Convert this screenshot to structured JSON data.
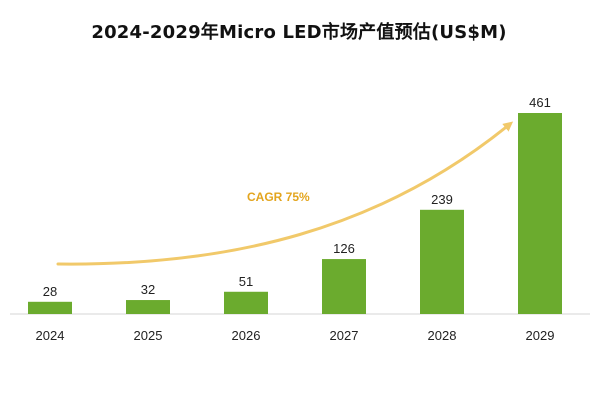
{
  "chart_data": {
    "type": "bar",
    "title": "2024-2029年Micro LED市场产值预估(US$M)",
    "categories": [
      "2024",
      "2025",
      "2026",
      "2027",
      "2028",
      "2029"
    ],
    "values": [
      28,
      32,
      51,
      126,
      239,
      461
    ],
    "value_labels": [
      "28",
      "32",
      "51",
      "126",
      "239",
      "461"
    ],
    "ylim": [
      0,
      461
    ],
    "grid": false,
    "legend": "none",
    "annotation": "CAGR 75%",
    "colors": {
      "bar": "#6bab2e",
      "trend_arrow": "#f1c96a",
      "annotation": "#e3a51e",
      "axis": "#d6d6d6"
    }
  }
}
